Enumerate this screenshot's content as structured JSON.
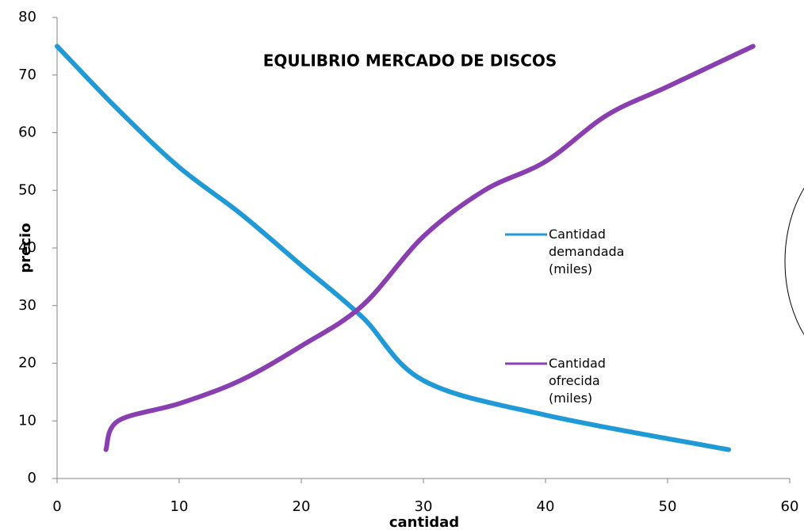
{
  "chart_data": {
    "type": "line",
    "title": "EQULIBRIO  MERCADO DE DISCOS",
    "x_label": "cantidad",
    "y_label": "precio",
    "xlim": [
      0,
      60
    ],
    "xticks": [
      0,
      10,
      20,
      30,
      40,
      50,
      60
    ],
    "ylim": [
      0,
      80
    ],
    "yticks": [
      0,
      10,
      20,
      30,
      40,
      50,
      60,
      70,
      80
    ],
    "legend": "right",
    "series": [
      {
        "name": "Cantidad demandada (miles)",
        "color": "#1f9ad6",
        "x": [
          0,
          5,
          10,
          15,
          20,
          25,
          30,
          40,
          55
        ],
        "values": [
          75,
          64,
          54,
          46,
          37,
          28,
          17,
          11,
          5
        ]
      },
      {
        "name": "Cantidad ofrecida (miles)",
        "color": "#8a3fb0",
        "x": [
          4,
          5,
          10,
          15,
          20,
          25,
          30,
          35,
          40,
          45,
          50,
          57
        ],
        "values": [
          5,
          10,
          13,
          17,
          23,
          30,
          42,
          50,
          55,
          63,
          68,
          75
        ]
      }
    ]
  }
}
